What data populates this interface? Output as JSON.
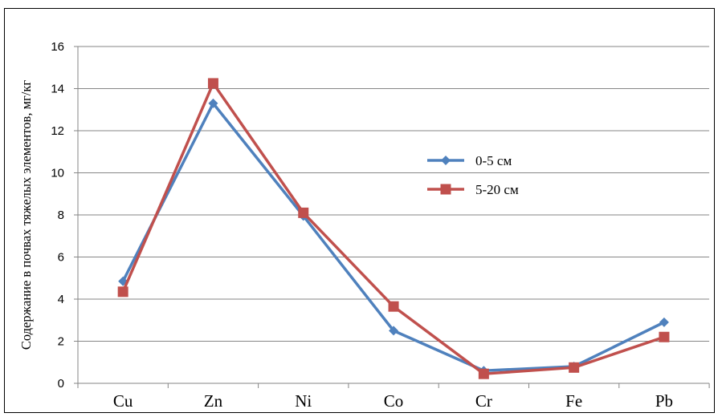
{
  "chart_data": {
    "type": "line",
    "title": "",
    "xlabel": "",
    "ylabel": "Содержание в почвах тяжелых элементов, мг/кг",
    "categories": [
      "Cu",
      "Zn",
      "Ni",
      "Co",
      "Cr",
      "Fe",
      "Pb"
    ],
    "ylim": [
      0,
      16
    ],
    "yticks": [
      "0",
      "2",
      "4",
      "6",
      "8",
      "10",
      "12",
      "14",
      "16"
    ],
    "grid": true,
    "legend_position": "right",
    "series": [
      {
        "name": "0-5 см",
        "color": "#4F81BD",
        "marker": "diamond",
        "values": [
          4.85,
          13.3,
          7.95,
          2.5,
          0.6,
          0.8,
          2.9
        ]
      },
      {
        "name": "5-20 см",
        "color": "#C0504D",
        "marker": "square",
        "values": [
          4.35,
          14.25,
          8.1,
          3.65,
          0.45,
          0.75,
          2.2
        ]
      }
    ]
  }
}
